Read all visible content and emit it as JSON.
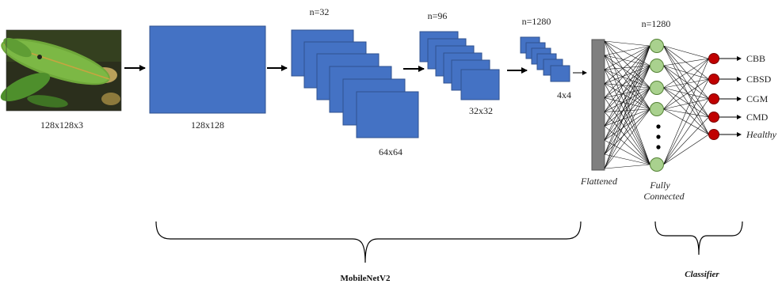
{
  "input": {
    "caption": "128x128x3",
    "image_description_icon": "leaf-photo-icon"
  },
  "stages": {
    "stage1": {
      "size_label": "128x128"
    },
    "stage2": {
      "count_label": "n=32",
      "size_label": "64x64"
    },
    "stage3": {
      "count_label": "n=96",
      "size_label": "32x32"
    },
    "stage4": {
      "count_label": "n=1280",
      "size_label": "4x4"
    }
  },
  "flatten": {
    "label": "Flattened"
  },
  "dense": {
    "count_label": "n=1280",
    "label_line1": "Fully",
    "label_line2": "Connected"
  },
  "outputs": [
    "CBB",
    "CBSD",
    "CGM",
    "CMD",
    "Healthy"
  ],
  "groups": {
    "backbone": "MobileNetV2",
    "head": "Classifier"
  },
  "colors": {
    "feature_map": "#4472c4",
    "dense_node": "#a9d18e",
    "output_node": "#c00000",
    "flatten_bar": "#7f7f7f"
  }
}
